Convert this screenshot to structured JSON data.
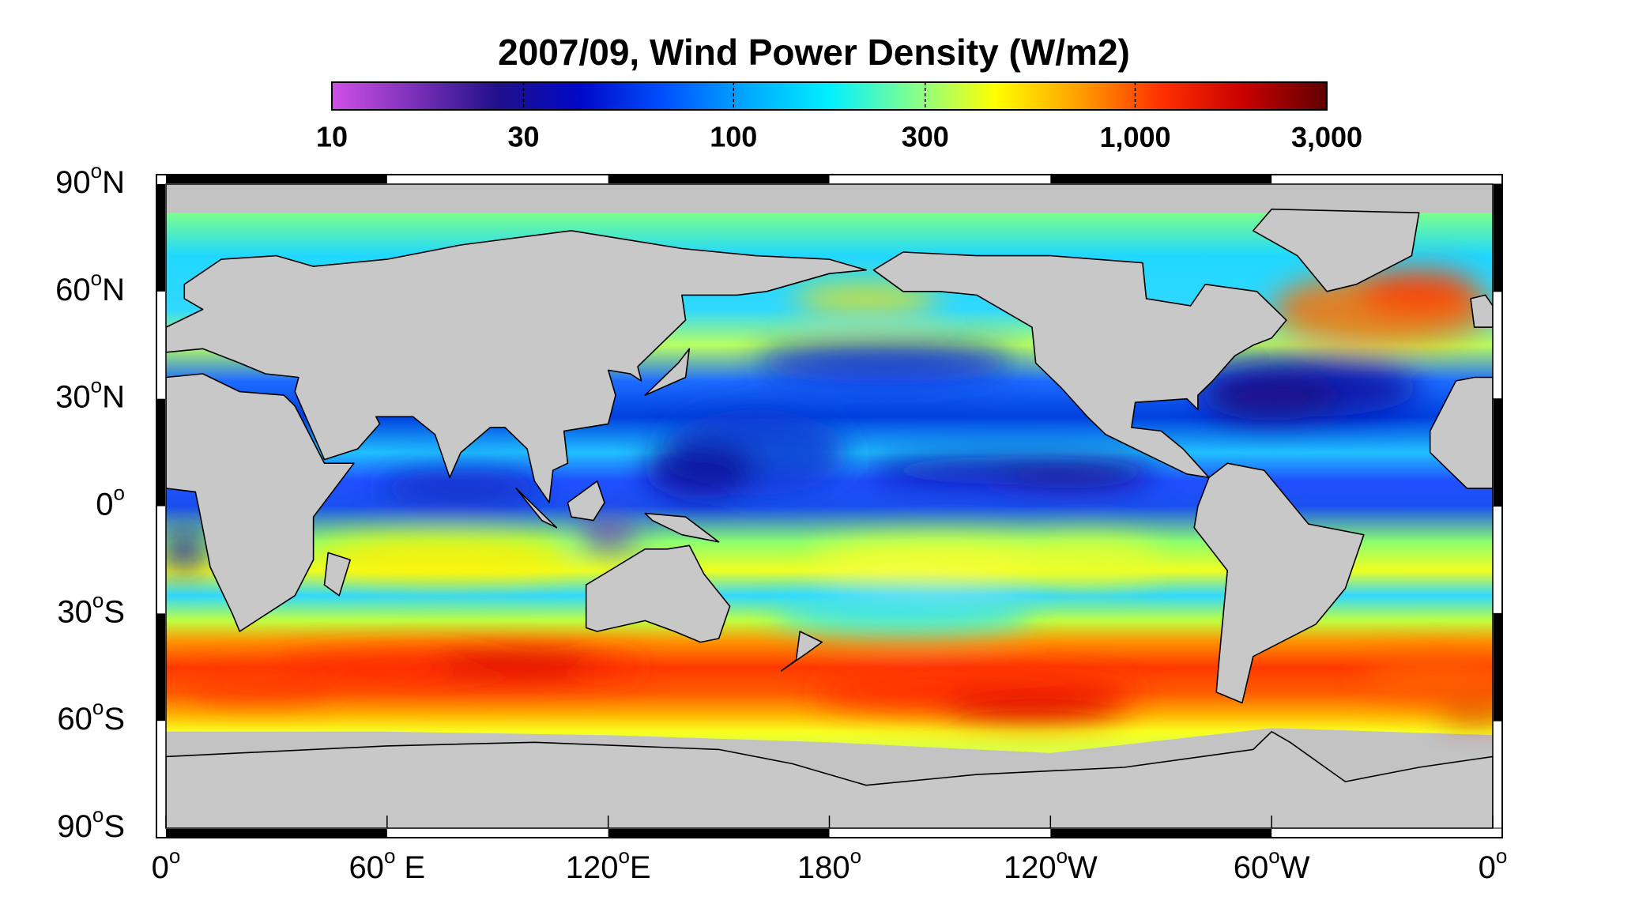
{
  "title": "2007/09, Wind Power Density (W/m2)",
  "colorbar": {
    "scale": "log",
    "lim": [
      10,
      3000
    ],
    "ticks": [
      10,
      30,
      100,
      300,
      {
        "value": 1000,
        "label": "1,000"
      },
      {
        "value": 3000,
        "label": "3,000"
      }
    ],
    "colormap": [
      "#d050e8",
      "#7a30b8",
      "#20108a",
      "#0008c8",
      "#0050ff",
      "#00a8ff",
      "#00f0ff",
      "#80ff90",
      "#ffff00",
      "#ffa000",
      "#ff3000",
      "#c80000",
      "#600000"
    ]
  },
  "map": {
    "xlim": [
      0,
      360
    ],
    "ylim": [
      -90,
      90
    ],
    "xticks": [
      {
        "value": 0,
        "label": "0",
        "sup": "o"
      },
      {
        "value": 60,
        "label": "60",
        "sup": "o",
        "suffix": " E"
      },
      {
        "value": 120,
        "label": "120",
        "sup": "o",
        "suffix": "E"
      },
      {
        "value": 180,
        "label": "180",
        "sup": "o"
      },
      {
        "value": 240,
        "label": "120",
        "sup": "o",
        "suffix": "W"
      },
      {
        "value": 300,
        "label": "60",
        "sup": "o",
        "suffix": "W"
      },
      {
        "value": 360,
        "label": "0",
        "sup": "o"
      }
    ],
    "yticks": [
      {
        "value": 90,
        "label": "90",
        "sup": "o",
        "suffix": "N"
      },
      {
        "value": 60,
        "label": "60",
        "sup": "o",
        "suffix": "N"
      },
      {
        "value": 30,
        "label": "30",
        "sup": "o",
        "suffix": "N"
      },
      {
        "value": 0,
        "label": "0",
        "sup": "o"
      },
      {
        "value": -30,
        "label": "30",
        "sup": "o",
        "suffix": "S"
      },
      {
        "value": -60,
        "label": "60",
        "sup": "o",
        "suffix": "S"
      },
      {
        "value": -90,
        "label": "90",
        "sup": "o",
        "suffix": "S"
      }
    ]
  }
}
